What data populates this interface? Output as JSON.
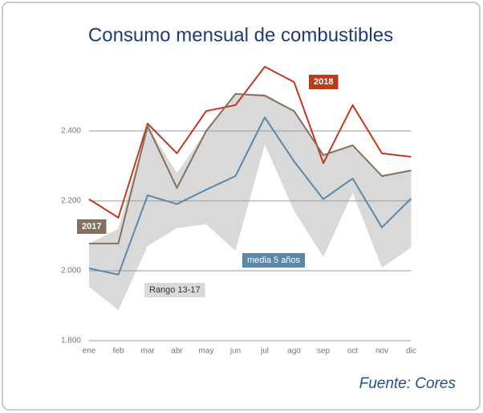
{
  "chart_data": {
    "type": "line",
    "title": "Consumo mensual de combustibles",
    "source": "Fuente: Cores",
    "categories": [
      "ene",
      "feb",
      "mar",
      "abr",
      "may",
      "jun",
      "jul",
      "ago",
      "sep",
      "oct",
      "nov",
      "dic"
    ],
    "series": [
      {
        "name": "2018",
        "color": "#c0391b",
        "values": [
          2205,
          2152,
          2421,
          2336,
          2457,
          2474,
          2584,
          2540,
          2308,
          2474,
          2336,
          2326
        ]
      },
      {
        "name": "2017",
        "color": "#85705f",
        "values": [
          2078,
          2078,
          2414,
          2237,
          2400,
          2506,
          2501,
          2457,
          2331,
          2359,
          2271,
          2287
        ]
      },
      {
        "name": "media 5 años",
        "color": "#5b87a8",
        "values": [
          2007,
          1989,
          2216,
          2191,
          2232,
          2271,
          2439,
          2313,
          2205,
          2264,
          2124,
          2207
        ]
      }
    ],
    "range": {
      "name": "Rango 13-17",
      "color": "#d9d9d9",
      "high": [
        2078,
        2120,
        2414,
        2280,
        2400,
        2506,
        2506,
        2457,
        2331,
        2359,
        2271,
        2287
      ],
      "low": [
        1954,
        1887,
        2071,
        2122,
        2133,
        2057,
        2361,
        2172,
        2039,
        2223,
        2009,
        2067
      ]
    },
    "ylim": [
      1800,
      2600
    ],
    "yticks": [
      {
        "value": 1800,
        "label": "1.800"
      },
      {
        "value": 2000,
        "label": "2.000"
      },
      {
        "value": 2200,
        "label": "2.200"
      },
      {
        "value": 2400,
        "label": "2.400"
      }
    ],
    "grid": true
  }
}
